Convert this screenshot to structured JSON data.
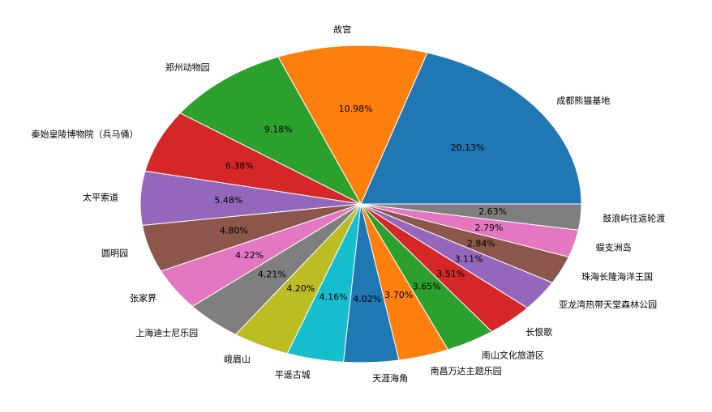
{
  "chart_data": {
    "type": "pie",
    "title": "",
    "start_angle": 0,
    "direction": "counterclockwise",
    "legend_position": "none",
    "percent_label_position": "inside",
    "name_label_position": "outside",
    "background_color": "#ffffff",
    "slice_edge_color": "#ffffff",
    "slices": [
      {
        "label": "成都熊猫基地",
        "value": 20.13,
        "percent_label": "20.13%",
        "color": "#1f77b4"
      },
      {
        "label": "故宫",
        "value": 10.98,
        "percent_label": "10.98%",
        "color": "#ff7f0e"
      },
      {
        "label": "郑州动物园",
        "value": 9.18,
        "percent_label": "9.18%",
        "color": "#2ca02c"
      },
      {
        "label": "秦始皇陵博物院（兵马俑）",
        "value": 6.38,
        "percent_label": "6.38%",
        "color": "#d62728"
      },
      {
        "label": "太平索道",
        "value": 5.48,
        "percent_label": "5.48%",
        "color": "#9467bd"
      },
      {
        "label": "圆明园",
        "value": 4.8,
        "percent_label": "4.80%",
        "color": "#8c564b"
      },
      {
        "label": "张家界",
        "value": 4.22,
        "percent_label": "4.22%",
        "color": "#e377c2"
      },
      {
        "label": "上海迪士尼乐园",
        "value": 4.21,
        "percent_label": "4.21%",
        "color": "#7f7f7f"
      },
      {
        "label": "峨眉山",
        "value": 4.2,
        "percent_label": "4.20%",
        "color": "#bcbd22"
      },
      {
        "label": "平遥古城",
        "value": 4.16,
        "percent_label": "4.16%",
        "color": "#17becf"
      },
      {
        "label": "天涯海角",
        "value": 4.02,
        "percent_label": "4.02%",
        "color": "#1f77b4"
      },
      {
        "label": "南昌万达主题乐园",
        "value": 3.7,
        "percent_label": "3.70%",
        "color": "#ff7f0e"
      },
      {
        "label": "南山文化旅游区",
        "value": 3.65,
        "percent_label": "3.65%",
        "color": "#2ca02c"
      },
      {
        "label": "长恨歌",
        "value": 3.51,
        "percent_label": "3.51%",
        "color": "#d62728"
      },
      {
        "label": "亚龙湾热带天堂森林公园",
        "value": 3.11,
        "percent_label": "3.11%",
        "color": "#9467bd"
      },
      {
        "label": "珠海长隆海洋王国",
        "value": 2.84,
        "percent_label": "2.84%",
        "color": "#8c564b"
      },
      {
        "label": "蜈支洲岛",
        "value": 2.79,
        "percent_label": "2.79%",
        "color": "#e377c2"
      },
      {
        "label": "鼓浪屿往返轮渡",
        "value": 2.63,
        "percent_label": "2.63%",
        "color": "#7f7f7f"
      }
    ]
  }
}
